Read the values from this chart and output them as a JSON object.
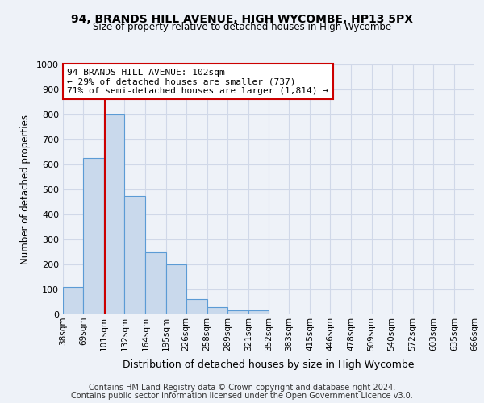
{
  "title": "94, BRANDS HILL AVENUE, HIGH WYCOMBE, HP13 5PX",
  "subtitle": "Size of property relative to detached houses in High Wycombe",
  "xlabel": "Distribution of detached houses by size in High Wycombe",
  "ylabel": "Number of detached properties",
  "bar_edges": [
    38,
    69,
    101,
    132,
    164,
    195,
    226,
    258,
    289,
    321,
    352,
    383,
    415,
    446,
    478,
    509,
    540,
    572,
    603,
    635,
    666
  ],
  "bar_heights": [
    110,
    625,
    800,
    475,
    250,
    200,
    60,
    28,
    15,
    15,
    0,
    0,
    0,
    0,
    0,
    0,
    0,
    0,
    0,
    0
  ],
  "bar_color": "#c9d9ec",
  "bar_edge_color": "#5b9bd5",
  "grid_color": "#d0d8e8",
  "background_color": "#eef2f8",
  "property_line_x": 102,
  "property_line_color": "#cc0000",
  "annotation_text": "94 BRANDS HILL AVENUE: 102sqm\n← 29% of detached houses are smaller (737)\n71% of semi-detached houses are larger (1,814) →",
  "annotation_box_color": "#ffffff",
  "annotation_box_edge": "#cc0000",
  "ylim": [
    0,
    1000
  ],
  "yticks": [
    0,
    100,
    200,
    300,
    400,
    500,
    600,
    700,
    800,
    900,
    1000
  ],
  "tick_labels": [
    "38sqm",
    "69sqm",
    "101sqm",
    "132sqm",
    "164sqm",
    "195sqm",
    "226sqm",
    "258sqm",
    "289sqm",
    "321sqm",
    "352sqm",
    "383sqm",
    "415sqm",
    "446sqm",
    "478sqm",
    "509sqm",
    "540sqm",
    "572sqm",
    "603sqm",
    "635sqm",
    "666sqm"
  ],
  "footer_line1": "Contains HM Land Registry data © Crown copyright and database right 2024.",
  "footer_line2": "Contains public sector information licensed under the Open Government Licence v3.0."
}
